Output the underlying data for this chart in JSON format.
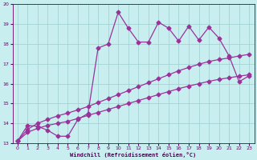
{
  "xlabel": "Windchill (Refroidissement éolien,°C)",
  "xlim": [
    -0.5,
    23.5
  ],
  "ylim": [
    13,
    20
  ],
  "xticks": [
    0,
    1,
    2,
    3,
    4,
    5,
    6,
    7,
    8,
    9,
    10,
    11,
    12,
    13,
    14,
    15,
    16,
    17,
    18,
    19,
    20,
    21,
    22,
    23
  ],
  "yticks": [
    13,
    14,
    15,
    16,
    17,
    18,
    19,
    20
  ],
  "bg_color": "#c8eef0",
  "grid_color": "#9ecece",
  "line_color": "#993399",
  "line1_x": [
    0,
    1,
    2,
    3,
    4,
    5,
    6,
    7,
    8,
    9,
    10,
    11,
    12,
    13,
    14,
    15,
    16,
    17,
    18,
    19,
    20,
    21,
    22,
    23
  ],
  "line1_y": [
    13.1,
    13.55,
    13.75,
    13.9,
    14.0,
    14.1,
    14.25,
    14.4,
    14.55,
    14.7,
    14.85,
    15.0,
    15.15,
    15.3,
    15.45,
    15.6,
    15.75,
    15.88,
    16.0,
    16.12,
    16.22,
    16.3,
    16.38,
    16.45
  ],
  "line2_x": [
    0,
    1,
    2,
    3,
    4,
    5,
    6,
    7,
    8,
    9,
    10,
    11,
    12,
    13,
    14,
    15,
    16,
    17,
    18,
    19,
    20,
    21,
    22,
    23
  ],
  "line2_y": [
    13.1,
    13.7,
    14.0,
    14.2,
    14.38,
    14.52,
    14.68,
    14.85,
    15.05,
    15.25,
    15.45,
    15.65,
    15.85,
    16.05,
    16.25,
    16.45,
    16.65,
    16.82,
    16.98,
    17.12,
    17.22,
    17.3,
    17.4,
    17.48
  ],
  "line3_x": [
    0,
    1,
    2,
    3,
    4,
    5,
    6,
    7,
    8,
    9,
    10,
    11,
    12,
    13,
    14,
    15,
    16,
    17,
    18,
    19,
    20,
    21,
    22,
    23
  ],
  "line3_y": [
    13.1,
    13.9,
    13.85,
    13.65,
    13.35,
    13.35,
    14.2,
    14.5,
    17.8,
    18.0,
    19.6,
    18.8,
    18.1,
    18.1,
    19.1,
    18.8,
    18.15,
    18.9,
    18.2,
    18.85,
    18.3,
    17.4,
    16.1,
    16.4
  ],
  "marker": "D",
  "markersize": 2.5,
  "linewidth": 0.9
}
